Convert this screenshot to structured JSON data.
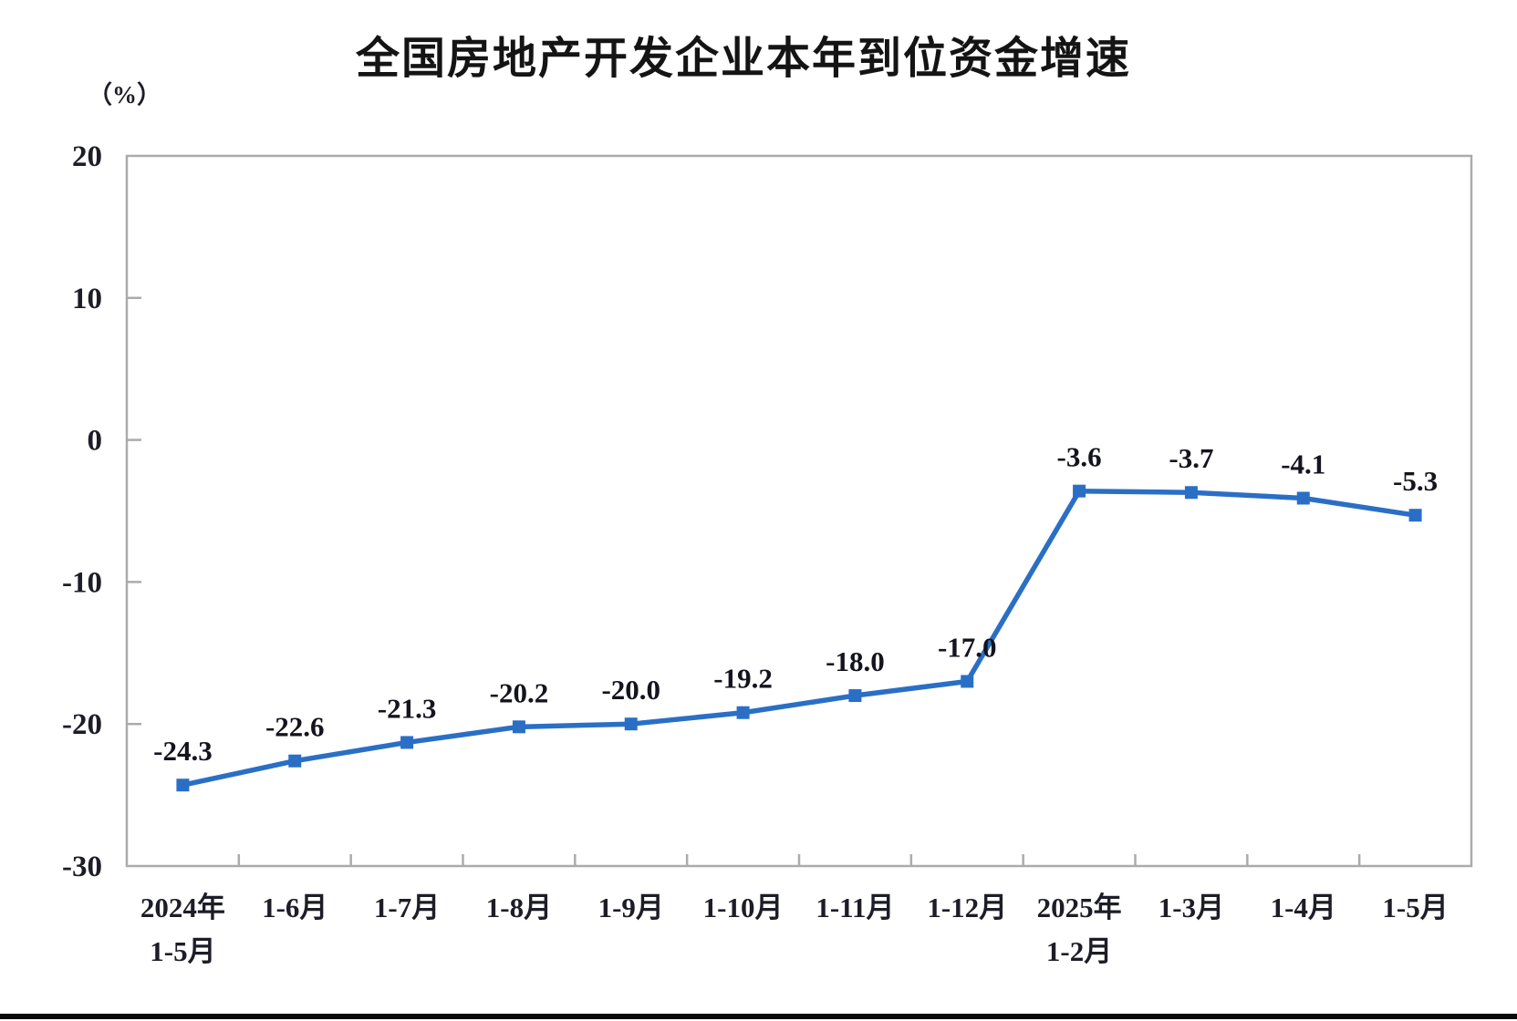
{
  "chart_data": {
    "type": "line",
    "title": "全国房地产开发企业本年到位资金增速",
    "ylabel": "（%）",
    "xlabel": "",
    "categories": [
      "2024年\n1-5月",
      "1-6月",
      "1-7月",
      "1-8月",
      "1-9月",
      "1-10月",
      "1-11月",
      "1-12月",
      "2025年\n1-2月",
      "1-3月",
      "1-4月",
      "1-5月"
    ],
    "values": [
      -24.3,
      -22.6,
      -21.3,
      -20.2,
      -20.0,
      -19.2,
      -18.0,
      -17.0,
      -3.6,
      -3.7,
      -4.1,
      -5.3
    ],
    "data_labels": [
      "-24.3",
      "-22.6",
      "-21.3",
      "-20.2",
      "-20.0",
      "-19.2",
      "-18.0",
      "-17.0",
      "-3.6",
      "-3.7",
      "-4.1",
      "-5.3"
    ],
    "ylim": [
      -30,
      20
    ],
    "yticks": [
      20,
      10,
      0,
      -10,
      -20,
      -30
    ],
    "grid": false,
    "legend": "none",
    "series_name": "本年到位资金增速",
    "line_color": "#2A6FC5",
    "marker": "square",
    "axis_color": "#ABABAB",
    "label_color": "#1d1d28"
  }
}
